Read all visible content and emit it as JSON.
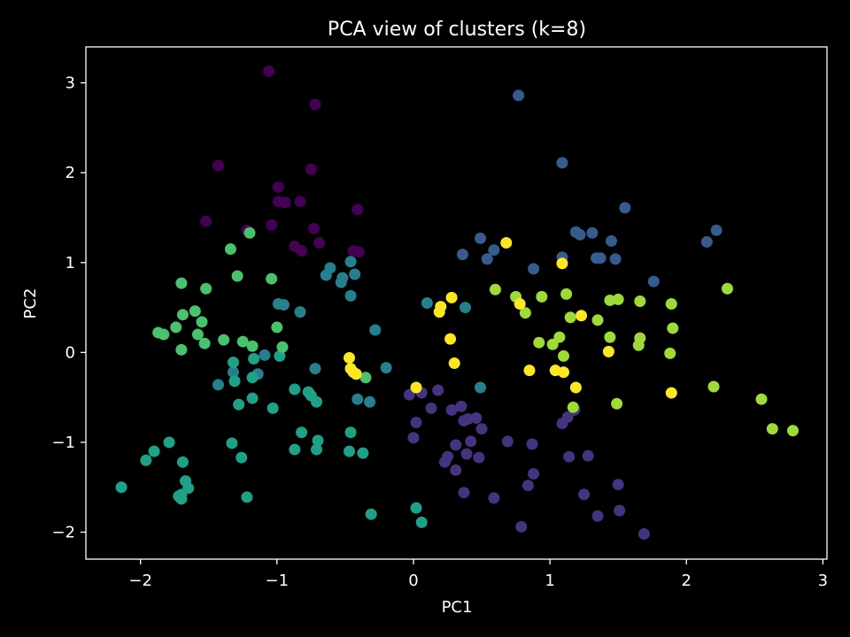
{
  "chart_data": {
    "type": "scatter",
    "title": "PCA view of clusters (k=8)",
    "xlabel": "PC1",
    "ylabel": "PC2",
    "xlim": [
      -2.4,
      3.03
    ],
    "ylim": [
      -2.3,
      3.4
    ],
    "xticks": [
      -2,
      -1,
      0,
      1,
      2,
      3
    ],
    "yticks": [
      -2,
      -1,
      0,
      1,
      2,
      3
    ],
    "grid": false,
    "background": "#000000",
    "series": [
      {
        "color": "#440154",
        "points": [
          [
            -1.06,
            3.13
          ],
          [
            -0.72,
            2.76
          ],
          [
            -1.43,
            2.08
          ],
          [
            -0.75,
            2.04
          ],
          [
            -0.99,
            1.84
          ],
          [
            -0.99,
            1.68
          ],
          [
            -0.94,
            1.67
          ],
          [
            -0.83,
            1.68
          ],
          [
            -0.41,
            1.59
          ],
          [
            -1.52,
            1.46
          ],
          [
            -1.04,
            1.42
          ],
          [
            -1.22,
            1.36
          ],
          [
            -0.73,
            1.38
          ],
          [
            -0.87,
            1.18
          ],
          [
            -0.69,
            1.22
          ],
          [
            -0.82,
            1.13
          ],
          [
            -0.44,
            1.13
          ],
          [
            -0.4,
            1.12
          ]
        ]
      },
      {
        "color": "#46337f",
        "points": [
          [
            -0.03,
            -0.47
          ],
          [
            0.06,
            -0.45
          ],
          [
            0.18,
            -0.42
          ],
          [
            0.02,
            -0.78
          ],
          [
            0.13,
            -0.62
          ],
          [
            0.28,
            -0.64
          ],
          [
            0.35,
            -0.6
          ],
          [
            0.37,
            -0.76
          ],
          [
            0.4,
            -0.74
          ],
          [
            0.46,
            -0.73
          ],
          [
            0.5,
            -0.85
          ],
          [
            0.42,
            -0.99
          ],
          [
            0.31,
            -1.03
          ],
          [
            0.0,
            -0.95
          ],
          [
            0.39,
            -1.13
          ],
          [
            0.48,
            -1.17
          ],
          [
            0.25,
            -1.16
          ],
          [
            0.23,
            -1.22
          ],
          [
            0.31,
            -1.31
          ],
          [
            0.37,
            -1.56
          ],
          [
            0.59,
            -1.62
          ],
          [
            0.69,
            -0.99
          ],
          [
            0.87,
            -1.02
          ],
          [
            0.88,
            -1.35
          ],
          [
            0.84,
            -1.48
          ],
          [
            0.79,
            -1.94
          ],
          [
            1.14,
            -1.16
          ],
          [
            1.28,
            -1.15
          ],
          [
            1.25,
            -1.58
          ],
          [
            1.35,
            -1.82
          ],
          [
            1.5,
            -1.47
          ],
          [
            1.51,
            -1.76
          ],
          [
            1.69,
            -2.02
          ],
          [
            1.18,
            -0.64
          ],
          [
            1.13,
            -0.72
          ],
          [
            1.09,
            -0.79
          ]
        ]
      },
      {
        "color": "#365c8d",
        "points": [
          [
            0.77,
            2.86
          ],
          [
            1.09,
            2.11
          ],
          [
            1.55,
            1.61
          ],
          [
            1.19,
            1.34
          ],
          [
            1.22,
            1.31
          ],
          [
            1.31,
            1.33
          ],
          [
            2.22,
            1.36
          ],
          [
            2.15,
            1.23
          ],
          [
            1.45,
            1.24
          ],
          [
            0.49,
            1.27
          ],
          [
            0.59,
            1.14
          ],
          [
            0.54,
            1.04
          ],
          [
            0.36,
            1.09
          ],
          [
            1.09,
            1.06
          ],
          [
            1.34,
            1.05
          ],
          [
            1.37,
            1.05
          ],
          [
            1.48,
            1.04
          ],
          [
            0.88,
            0.93
          ],
          [
            1.76,
            0.79
          ]
        ]
      },
      {
        "color": "#277f8e",
        "points": [
          [
            -0.46,
            1.01
          ],
          [
            -0.43,
            0.87
          ],
          [
            -0.61,
            0.94
          ],
          [
            -0.64,
            0.86
          ],
          [
            -0.53,
            0.78
          ],
          [
            -0.52,
            0.83
          ],
          [
            -0.46,
            0.63
          ],
          [
            0.1,
            0.55
          ],
          [
            0.38,
            0.5
          ],
          [
            -0.99,
            0.54
          ],
          [
            -0.95,
            0.53
          ],
          [
            -0.83,
            0.45
          ],
          [
            -0.28,
            0.25
          ],
          [
            -0.2,
            -0.17
          ],
          [
            -0.72,
            -0.18
          ],
          [
            -1.09,
            -0.03
          ],
          [
            -1.14,
            -0.24
          ],
          [
            -1.32,
            -0.22
          ],
          [
            -1.43,
            -0.36
          ],
          [
            -0.41,
            -0.52
          ],
          [
            -0.32,
            -0.55
          ],
          [
            0.49,
            -0.39
          ]
        ]
      },
      {
        "color": "#1fa187",
        "points": [
          [
            -2.14,
            -1.5
          ],
          [
            -1.96,
            -1.2
          ],
          [
            -1.9,
            -1.1
          ],
          [
            -1.79,
            -1.0
          ],
          [
            -1.69,
            -1.22
          ],
          [
            -1.67,
            -1.43
          ],
          [
            -1.65,
            -1.51
          ],
          [
            -1.7,
            -1.58
          ],
          [
            -1.72,
            -1.6
          ],
          [
            -1.7,
            -1.63
          ],
          [
            -1.33,
            -1.01
          ],
          [
            -1.26,
            -1.17
          ],
          [
            -1.22,
            -1.61
          ],
          [
            -1.28,
            -0.58
          ],
          [
            -1.18,
            -0.51
          ],
          [
            -1.31,
            -0.32
          ],
          [
            -1.18,
            -0.28
          ],
          [
            -1.32,
            -0.11
          ],
          [
            -1.17,
            -0.07
          ],
          [
            -0.98,
            -0.04
          ],
          [
            -1.03,
            -0.62
          ],
          [
            -0.87,
            -0.41
          ],
          [
            -0.77,
            -0.44
          ],
          [
            -0.75,
            -0.48
          ],
          [
            -0.71,
            -0.55
          ],
          [
            -0.82,
            -0.89
          ],
          [
            -0.7,
            -0.98
          ],
          [
            -0.87,
            -1.08
          ],
          [
            -0.71,
            -1.08
          ],
          [
            -0.46,
            -0.89
          ],
          [
            -0.47,
            -1.1
          ],
          [
            -0.37,
            -1.12
          ],
          [
            -0.31,
            -1.8
          ],
          [
            0.02,
            -1.73
          ],
          [
            0.06,
            -1.89
          ]
        ]
      },
      {
        "color": "#4ac16d",
        "points": [
          [
            -1.2,
            1.33
          ],
          [
            -1.34,
            1.15
          ],
          [
            -1.29,
            0.85
          ],
          [
            -1.04,
            0.82
          ],
          [
            -1.7,
            0.77
          ],
          [
            -1.52,
            0.71
          ],
          [
            -1.6,
            0.46
          ],
          [
            -1.69,
            0.42
          ],
          [
            -1.55,
            0.34
          ],
          [
            -1.74,
            0.28
          ],
          [
            -1.87,
            0.22
          ],
          [
            -1.83,
            0.2
          ],
          [
            -1.58,
            0.2
          ],
          [
            -1.53,
            0.1
          ],
          [
            -1.39,
            0.14
          ],
          [
            -1.25,
            0.12
          ],
          [
            -1.18,
            0.07
          ],
          [
            -1.7,
            0.03
          ],
          [
            -1.0,
            0.28
          ],
          [
            -0.96,
            0.06
          ],
          [
            -0.35,
            -0.28
          ]
        ]
      },
      {
        "color": "#a0da39",
        "points": [
          [
            0.6,
            0.7
          ],
          [
            0.75,
            0.62
          ],
          [
            0.94,
            0.62
          ],
          [
            1.12,
            0.65
          ],
          [
            0.82,
            0.44
          ],
          [
            1.15,
            0.39
          ],
          [
            1.44,
            0.58
          ],
          [
            1.5,
            0.59
          ],
          [
            1.66,
            0.57
          ],
          [
            1.89,
            0.54
          ],
          [
            2.3,
            0.71
          ],
          [
            1.35,
            0.36
          ],
          [
            1.9,
            0.27
          ],
          [
            1.07,
            0.17
          ],
          [
            1.44,
            0.17
          ],
          [
            1.66,
            0.16
          ],
          [
            0.92,
            0.11
          ],
          [
            1.02,
            0.09
          ],
          [
            1.65,
            0.08
          ],
          [
            1.1,
            -0.04
          ],
          [
            1.88,
            -0.01
          ],
          [
            2.2,
            -0.38
          ],
          [
            1.49,
            -0.57
          ],
          [
            2.55,
            -0.52
          ],
          [
            2.63,
            -0.85
          ],
          [
            2.78,
            -0.87
          ],
          [
            1.17,
            -0.61
          ]
        ]
      },
      {
        "color": "#fde725",
        "points": [
          [
            0.68,
            1.22
          ],
          [
            1.09,
            0.99
          ],
          [
            0.28,
            0.61
          ],
          [
            0.2,
            0.51
          ],
          [
            0.19,
            0.45
          ],
          [
            0.78,
            0.54
          ],
          [
            1.23,
            0.41
          ],
          [
            0.27,
            0.15
          ],
          [
            1.43,
            0.01
          ],
          [
            -0.47,
            -0.06
          ],
          [
            0.3,
            -0.12
          ],
          [
            -0.46,
            -0.18
          ],
          [
            -0.44,
            -0.22
          ],
          [
            -0.42,
            -0.24
          ],
          [
            0.85,
            -0.2
          ],
          [
            1.04,
            -0.2
          ],
          [
            1.1,
            -0.22
          ],
          [
            1.19,
            -0.39
          ],
          [
            0.02,
            -0.39
          ],
          [
            1.89,
            -0.45
          ]
        ]
      }
    ]
  }
}
